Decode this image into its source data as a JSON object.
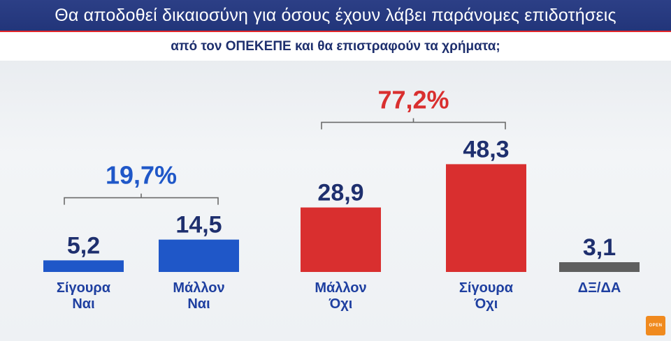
{
  "header": {
    "title": "Θα αποδοθεί δικαιοσύνη για όσους έχουν λάβει παράνομες επιδοτήσεις",
    "subtitle": "από τον ΟΠΕΚΕΠΕ και θα επιστραφούν τα χρήματα;"
  },
  "chart_data": {
    "type": "bar",
    "categories": [
      [
        "Σίγουρα",
        "Ναι"
      ],
      [
        "Μάλλον",
        "Ναι"
      ],
      [
        "Μάλλον",
        "Όχι"
      ],
      [
        "Σίγουρα",
        "Όχι"
      ],
      [
        "ΔΞ/ΔΑ"
      ]
    ],
    "values": [
      5.2,
      14.5,
      28.9,
      48.3,
      3.1
    ],
    "value_labels": [
      "5,2",
      "14,5",
      "28,9",
      "48,3",
      "3,1"
    ],
    "bar_colors": [
      "#1f57c8",
      "#1f57c8",
      "#d92f2f",
      "#d92f2f",
      "#5f5f5f"
    ],
    "groups": [
      {
        "label": "19,7%",
        "value": 19.7,
        "from": 0,
        "to": 1,
        "color": "#1f57c8"
      },
      {
        "label": "77,2%",
        "value": 77.2,
        "from": 2,
        "to": 3,
        "color": "#d92f2f"
      }
    ],
    "value_label_color": "#1e2f6e",
    "category_label_color": "#1e3fa0",
    "xlabel": "",
    "ylabel": "",
    "grid": false,
    "legend": "none"
  },
  "logo": {
    "text": "OPEN",
    "color": "#f08a1e"
  }
}
